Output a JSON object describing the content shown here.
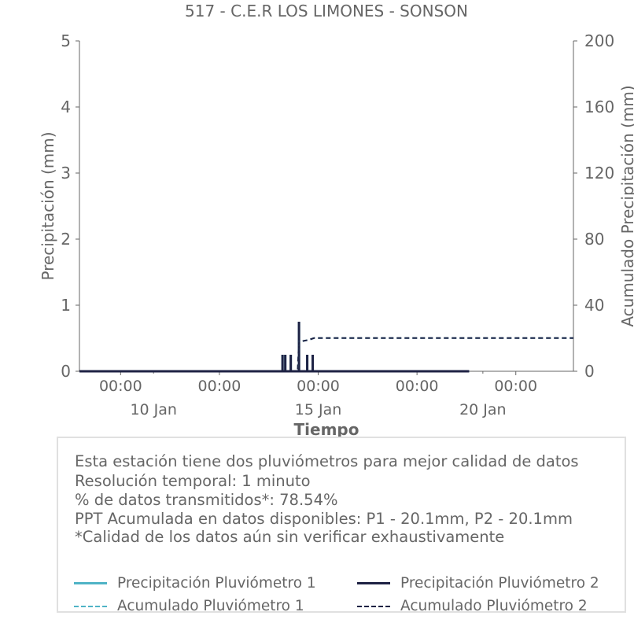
{
  "chart_data": {
    "type": "line",
    "title": "517 - C.E.R LOS LIMONES - SONSON",
    "xlabel": "Tiempo",
    "ylabel": "Precipitación (mm)",
    "y2label": "Acumulado Precipitación (mm)",
    "ylim": [
      0,
      5
    ],
    "y2lim": [
      0,
      200
    ],
    "yticks": [
      "0",
      "1",
      "2",
      "3",
      "4",
      "5"
    ],
    "y2ticks": [
      "0",
      "40",
      "80",
      "120",
      "160",
      "200"
    ],
    "xlim": [
      "2023-01-07T18:00",
      "2023-01-22T18:00"
    ],
    "xticks_time": [
      "00:00",
      "00:00",
      "00:00",
      "00:00",
      "00:00"
    ],
    "xticks_time_pos": [
      "2023-01-09T00:00",
      "2023-01-12T00:00",
      "2023-01-15T00:00",
      "2023-01-18T00:00",
      "2023-01-21T00:00"
    ],
    "xticks_date": [
      "10 Jan",
      "15 Jan",
      "20 Jan"
    ],
    "xticks_date_pos": [
      "2023-01-10T00:00",
      "2023-01-15T00:00",
      "2023-01-20T00:00"
    ],
    "grid": false,
    "series": [
      {
        "name": "Precipitación Pluviómetro 1",
        "axis": "left",
        "style": "solid",
        "color": "#4fb3c6",
        "x": [
          "2023-01-07T18:00",
          "2023-01-13T22:00",
          "2023-01-14T00:00",
          "2023-01-14T04:00",
          "2023-01-14T10:00",
          "2023-01-14T16:00",
          "2023-01-14T20:00",
          "2023-01-15T00:00",
          "2023-01-19T14:00"
        ],
        "y": [
          0,
          0.25,
          0.25,
          0.25,
          0.75,
          0.25,
          0.25,
          0,
          0
        ]
      },
      {
        "name": "Precipitación Pluviómetro 2",
        "axis": "left",
        "style": "solid",
        "color": "#1e2244",
        "x": [
          "2023-01-07T18:00",
          "2023-01-13T22:00",
          "2023-01-14T00:00",
          "2023-01-14T04:00",
          "2023-01-14T10:00",
          "2023-01-14T16:00",
          "2023-01-14T20:00",
          "2023-01-15T00:00",
          "2023-01-19T14:00"
        ],
        "y": [
          0,
          0.25,
          0.25,
          0.25,
          0.75,
          0.25,
          0.25,
          0,
          0
        ]
      },
      {
        "name": "Acumulado Pluviómetro 1",
        "axis": "right",
        "style": "dashed",
        "color": "#4fb3c6",
        "x": [
          "2023-01-07T18:00",
          "2023-01-14T09:00",
          "2023-01-14T10:00",
          "2023-01-14T11:00",
          "2023-01-14T17:00",
          "2023-01-14T21:00",
          "2023-01-22T18:00"
        ],
        "y": [
          0,
          0,
          18,
          18,
          19,
          20.1,
          20.1
        ]
      },
      {
        "name": "Acumulado Pluviómetro 2",
        "axis": "right",
        "style": "dashed",
        "color": "#1e2244",
        "x": [
          "2023-01-07T18:00",
          "2023-01-14T09:00",
          "2023-01-14T10:00",
          "2023-01-14T11:00",
          "2023-01-14T17:00",
          "2023-01-14T21:00",
          "2023-01-22T18:00"
        ],
        "y": [
          0,
          0,
          18,
          18,
          19,
          20.1,
          20.1
        ]
      }
    ]
  },
  "info": {
    "line1": "Esta estación tiene dos pluviómetros para mejor calidad de datos",
    "line2": "Resolución temporal: 1 minuto",
    "line3": "% de datos transmitidos*: 78.54%",
    "line4": "PPT Acumulada en datos disponibles: P1 - 20.1mm, P2 - 20.1mm",
    "line5": "*Calidad de los datos aún sin verificar exhaustivamente"
  },
  "legend": [
    {
      "label": "Precipitación Pluviómetro 1",
      "color": "#4fb3c6",
      "style": "solid"
    },
    {
      "label": "Precipitación Pluviómetro 2",
      "color": "#1e2244",
      "style": "solid"
    },
    {
      "label": "Acumulado Pluviómetro 1",
      "color": "#4fb3c6",
      "style": "dashed"
    },
    {
      "label": "Acumulado Pluviómetro 2",
      "color": "#1e2244",
      "style": "dashed"
    }
  ]
}
